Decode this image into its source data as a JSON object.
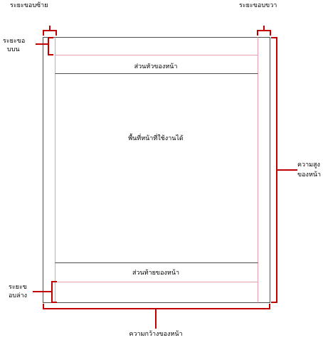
{
  "labels": {
    "left_margin": "ระยะขอบซ้าย",
    "right_margin": "ระยะขอบขวา",
    "top_margin": [
      "ระยะขอ",
      "บบน"
    ],
    "bottom_margin": [
      "ระยะข",
      "อบล่าง"
    ],
    "header": "ส่วนหัวของหน้า",
    "body": "พื้นที่หน้าที่ใช้งานได้",
    "footer": "ส่วนท้ายของหน้า",
    "page_height": [
      "ความสูง",
      "ของหน้า"
    ],
    "page_width": "ความกว้างของหน้า"
  },
  "colors": {
    "page_border": "#4d4d4d",
    "margin_guide": "#e8a0a8",
    "section_divider": "#4d4d4d",
    "dimension_bracket": "#c00000",
    "text": "#000000"
  }
}
